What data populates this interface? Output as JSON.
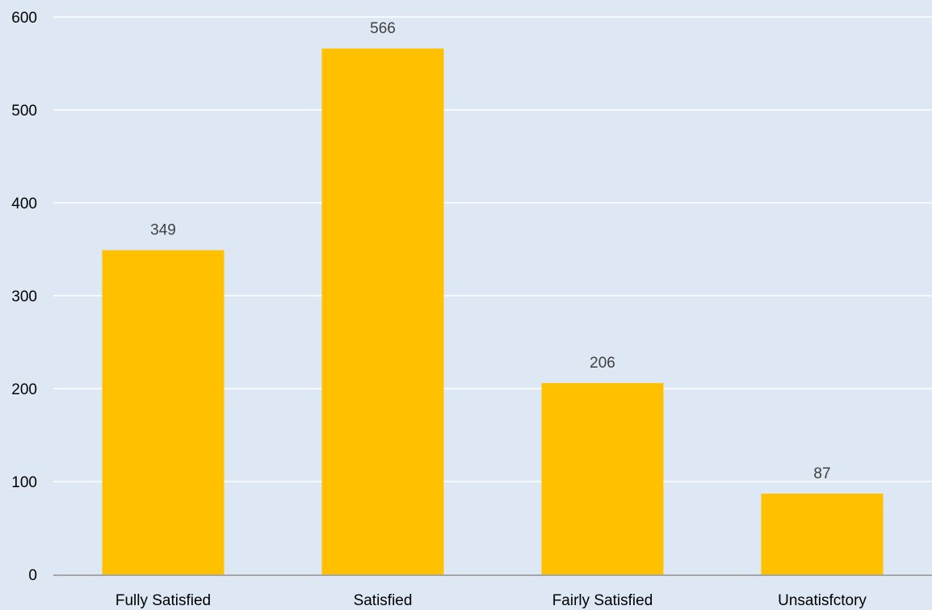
{
  "chart_data": {
    "type": "bar",
    "categories": [
      "Fully Satisfied",
      "Satisfied",
      "Fairly Satisfied",
      "Unsatisfctory"
    ],
    "values": [
      349,
      566,
      206,
      87
    ],
    "data_labels": [
      "349",
      "566",
      "206",
      "87"
    ],
    "y_ticks": [
      "0",
      "100",
      "200",
      "300",
      "400",
      "500",
      "600"
    ],
    "ylim": [
      0,
      600
    ],
    "grid": true,
    "legend": "none",
    "title": "",
    "xlabel": "",
    "ylabel": "",
    "colors": {
      "background": "#dee8f4",
      "bar": "#ffc000",
      "gridline": "#ffffff",
      "axis": "#a6a6a6",
      "data_label": "#404040",
      "tick_label": "#000000"
    }
  }
}
